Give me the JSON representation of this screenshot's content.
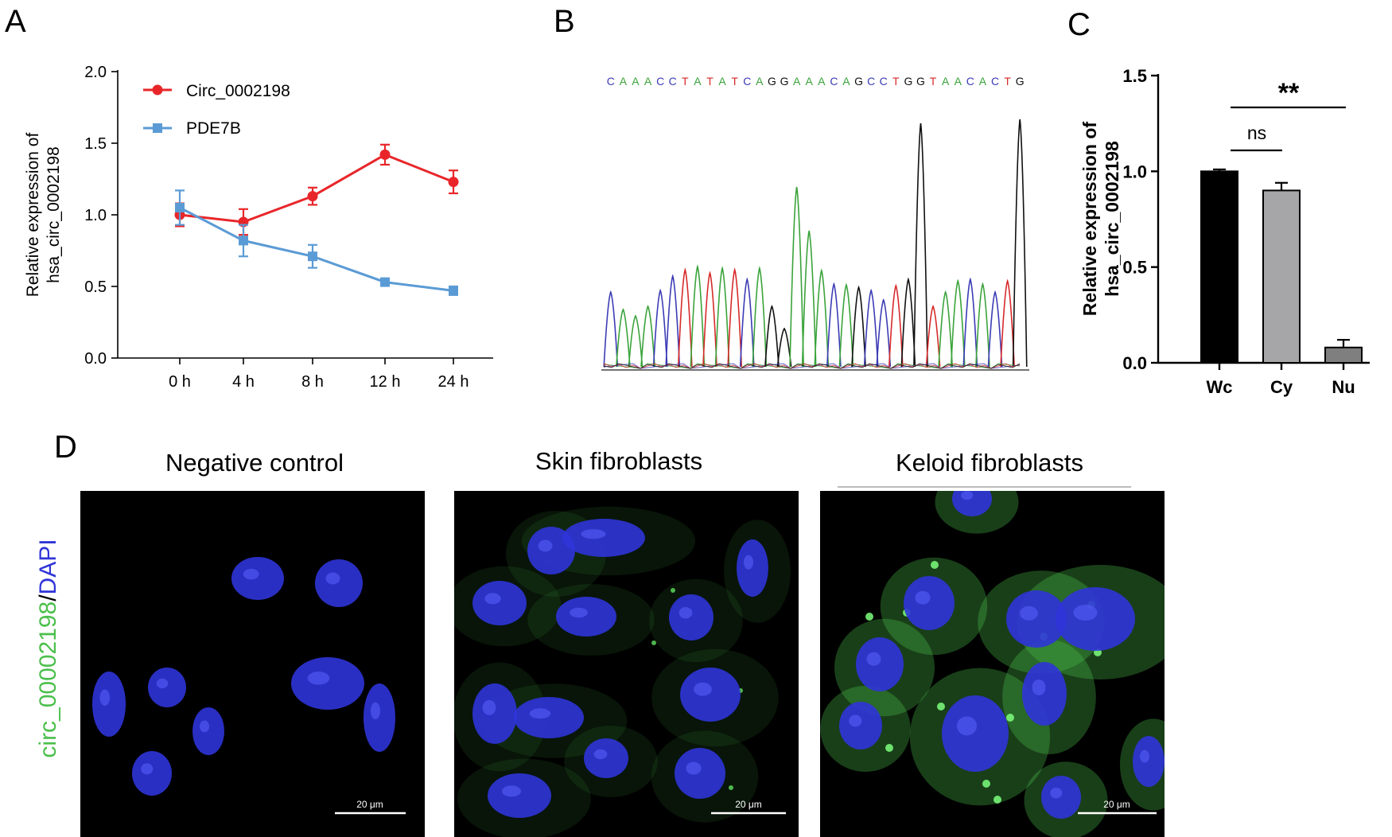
{
  "panels": {
    "A": {
      "letter": "A"
    },
    "B": {
      "letter": "B",
      "sequence": "CAAACCTATATCAGGAAACAGCCTGGTAACACTG"
    },
    "C": {
      "letter": "C"
    },
    "D": {
      "letter": "D",
      "side_label_green": "circ_00002198",
      "side_label_slash": "/",
      "side_label_blue": "DAPI",
      "images": [
        {
          "title": "Negative control",
          "scale_bar": "20 μm",
          "signal": "none"
        },
        {
          "title": "Skin fibroblasts",
          "scale_bar": "20 μm",
          "signal": "weak"
        },
        {
          "title": "Keloid fibroblasts",
          "scale_bar": "20 μm",
          "signal": "strong"
        }
      ]
    }
  },
  "colors": {
    "circ": "#e8262a",
    "pde": "#5b9bd5",
    "bar_wc": "#000000",
    "bar_cy": "#a6a6a8",
    "bar_nu": "#7f7f7f",
    "base_A": "#3aa33a",
    "base_C": "#3b3bb5",
    "base_G": "#111111",
    "base_T": "#d62a2a",
    "dapi": "#2f34d8",
    "fitc": "#4bbf4b"
  },
  "chart_data": [
    {
      "type": "line",
      "categories": [
        "0 h",
        "4 h",
        "8 h",
        "12 h",
        "24 h"
      ],
      "series": [
        {
          "name": "Circ_0002198",
          "values": [
            1.0,
            0.95,
            1.13,
            1.42,
            1.23
          ],
          "errors": [
            0.08,
            0.09,
            0.06,
            0.07,
            0.08
          ]
        },
        {
          "name": "PDE7B",
          "values": [
            1.05,
            0.82,
            0.71,
            0.53,
            0.47
          ],
          "errors": [
            0.12,
            0.11,
            0.08,
            0.01,
            0.03
          ]
        }
      ],
      "ylabel_line1": "Relative expression of",
      "ylabel_line2": "hsa_circ_0002198",
      "ylim": [
        0,
        2.0
      ],
      "yticks": [
        "0.0",
        "0.5",
        "1.0",
        "1.5",
        "2.0"
      ],
      "legend": "top-left"
    },
    {
      "type": "bar",
      "categories": [
        "Wc",
        "Cy",
        "Nu"
      ],
      "values": [
        1.0,
        0.9,
        0.08
      ],
      "errors": [
        0.01,
        0.04,
        0.04
      ],
      "ylabel_line1": "Relative expression of",
      "ylabel_line2": "hsa_circ_0002198",
      "ylim": [
        0,
        1.5
      ],
      "yticks": [
        "0.0",
        "0.5",
        "1.0",
        "1.5"
      ],
      "annotations": [
        {
          "label": "ns",
          "from": "Wc",
          "to": "Cy"
        },
        {
          "label": "**",
          "from": "Wc",
          "to": "Nu"
        }
      ]
    }
  ]
}
